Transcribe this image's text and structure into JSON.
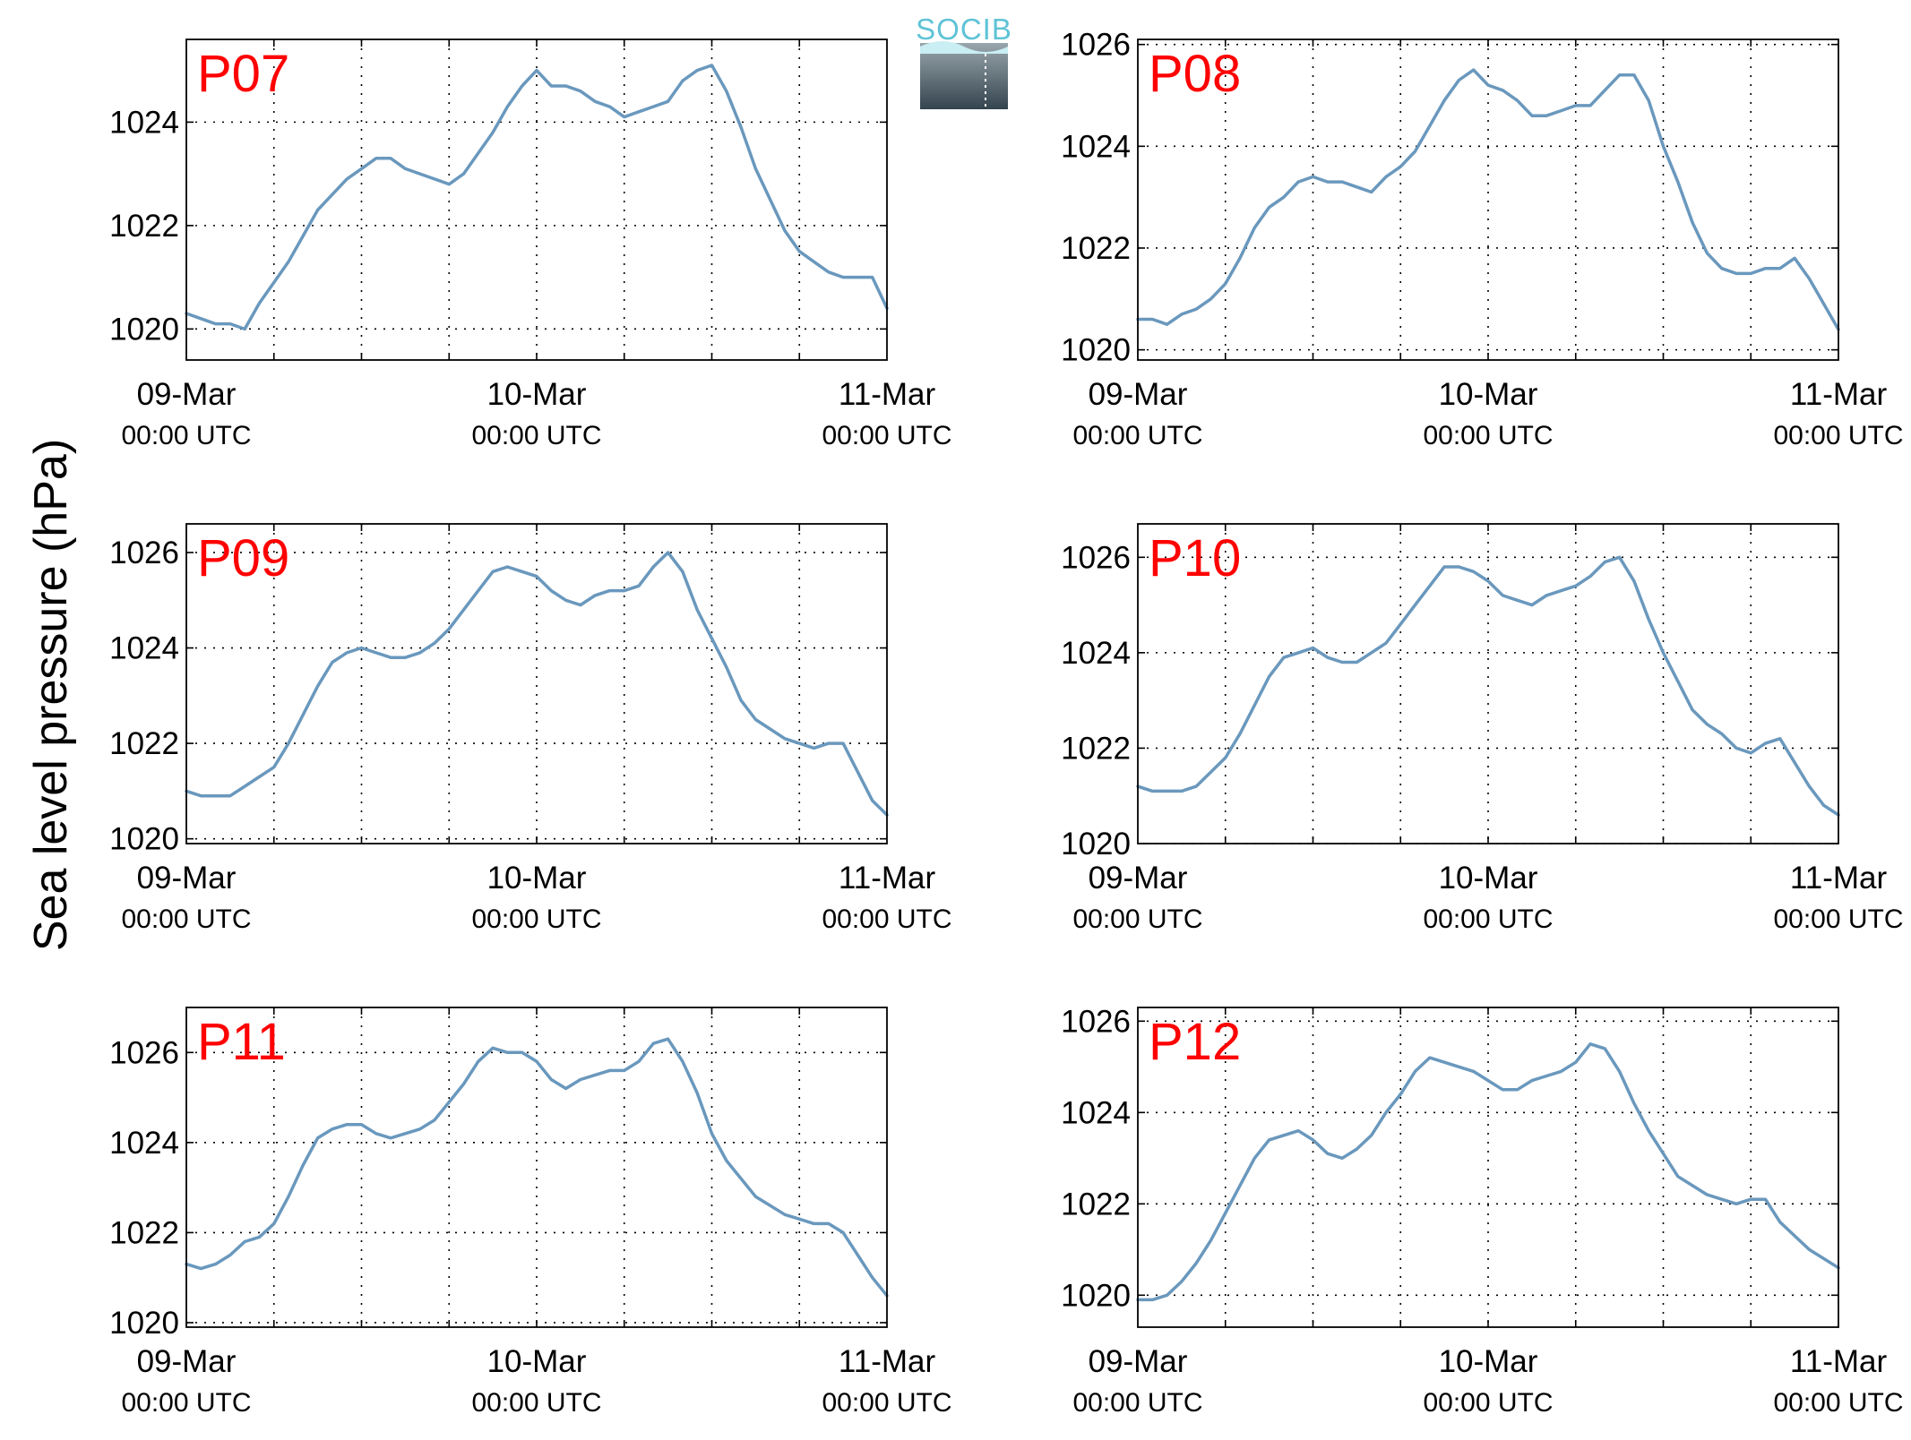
{
  "figure": {
    "ylabel": "Sea level pressure (hPa)",
    "logo_text": "SOCIB",
    "colors": {
      "line": "#6a98bd",
      "panel_label": "#ff0000",
      "axis": "#000000",
      "logo_text": "#5fc3d6",
      "logo_dark": "#3a4a55"
    }
  },
  "chart_data": [
    {
      "type": "line",
      "panel": "P07",
      "grid": true,
      "x_ticks": [
        {
          "top": "09-Mar",
          "bottom": "00:00 UTC"
        },
        {
          "top": "10-Mar",
          "bottom": "00:00 UTC"
        },
        {
          "top": "11-Mar",
          "bottom": "00:00 UTC"
        }
      ],
      "xlim_hours": [
        0,
        48
      ],
      "ylim": [
        1019.4,
        1025.6
      ],
      "y_ticks": [
        1020,
        1022,
        1024
      ],
      "series": [
        {
          "x_hours": [
            0,
            1,
            2,
            3,
            4,
            5,
            6,
            7,
            8,
            9,
            10,
            11,
            12,
            13,
            14,
            15,
            16,
            17,
            18,
            19,
            20,
            21,
            22,
            23,
            24,
            25,
            26,
            27,
            28,
            29,
            30,
            31,
            32,
            33,
            34,
            35,
            36,
            37,
            38,
            39,
            40,
            41,
            42,
            43,
            44,
            45,
            46,
            47,
            48
          ],
          "values": [
            1020.3,
            1020.2,
            1020.1,
            1020.1,
            1020.0,
            1020.5,
            1020.9,
            1021.3,
            1021.8,
            1022.3,
            1022.6,
            1022.9,
            1023.1,
            1023.3,
            1023.3,
            1023.1,
            1023.0,
            1022.9,
            1022.8,
            1023.0,
            1023.4,
            1023.8,
            1024.3,
            1024.7,
            1025.0,
            1024.7,
            1024.7,
            1024.6,
            1024.4,
            1024.3,
            1024.1,
            1024.2,
            1024.3,
            1024.4,
            1024.8,
            1025.0,
            1025.1,
            1024.6,
            1023.9,
            1023.1,
            1022.5,
            1021.9,
            1021.5,
            1021.3,
            1021.1,
            1021.0,
            1021.0,
            1021.0,
            1020.4
          ]
        }
      ]
    },
    {
      "type": "line",
      "panel": "P08",
      "grid": true,
      "x_ticks": [
        {
          "top": "09-Mar",
          "bottom": "00:00 UTC"
        },
        {
          "top": "10-Mar",
          "bottom": "00:00 UTC"
        },
        {
          "top": "11-Mar",
          "bottom": "00:00 UTC"
        }
      ],
      "xlim_hours": [
        0,
        48
      ],
      "ylim": [
        1019.8,
        1026.1
      ],
      "y_ticks": [
        1020,
        1022,
        1024,
        1026
      ],
      "series": [
        {
          "x_hours": [
            0,
            1,
            2,
            3,
            4,
            5,
            6,
            7,
            8,
            9,
            10,
            11,
            12,
            13,
            14,
            15,
            16,
            17,
            18,
            19,
            20,
            21,
            22,
            23,
            24,
            25,
            26,
            27,
            28,
            29,
            30,
            31,
            32,
            33,
            34,
            35,
            36,
            37,
            38,
            39,
            40,
            41,
            42,
            43,
            44,
            45,
            46,
            47,
            48
          ],
          "values": [
            1020.6,
            1020.6,
            1020.5,
            1020.7,
            1020.8,
            1021.0,
            1021.3,
            1021.8,
            1022.4,
            1022.8,
            1023.0,
            1023.3,
            1023.4,
            1023.3,
            1023.3,
            1023.2,
            1023.1,
            1023.4,
            1023.6,
            1023.9,
            1024.4,
            1024.9,
            1025.3,
            1025.5,
            1025.2,
            1025.1,
            1024.9,
            1024.6,
            1024.6,
            1024.7,
            1024.8,
            1024.8,
            1025.1,
            1025.4,
            1025.4,
            1024.9,
            1024.0,
            1023.3,
            1022.5,
            1021.9,
            1021.6,
            1021.5,
            1021.5,
            1021.6,
            1021.6,
            1021.8,
            1021.4,
            1020.9,
            1020.4
          ]
        }
      ]
    },
    {
      "type": "line",
      "panel": "P09",
      "grid": true,
      "x_ticks": [
        {
          "top": "09-Mar",
          "bottom": "00:00 UTC"
        },
        {
          "top": "10-Mar",
          "bottom": "00:00 UTC"
        },
        {
          "top": "11-Mar",
          "bottom": "00:00 UTC"
        }
      ],
      "xlim_hours": [
        0,
        48
      ],
      "ylim": [
        1019.9,
        1026.6
      ],
      "y_ticks": [
        1020,
        1022,
        1024,
        1026
      ],
      "series": [
        {
          "x_hours": [
            0,
            1,
            2,
            3,
            4,
            5,
            6,
            7,
            8,
            9,
            10,
            11,
            12,
            13,
            14,
            15,
            16,
            17,
            18,
            19,
            20,
            21,
            22,
            23,
            24,
            25,
            26,
            27,
            28,
            29,
            30,
            31,
            32,
            33,
            34,
            35,
            36,
            37,
            38,
            39,
            40,
            41,
            42,
            43,
            44,
            45,
            46,
            47,
            48
          ],
          "values": [
            1021.0,
            1020.9,
            1020.9,
            1020.9,
            1021.1,
            1021.3,
            1021.5,
            1022.0,
            1022.6,
            1023.2,
            1023.7,
            1023.9,
            1024.0,
            1023.9,
            1023.8,
            1023.8,
            1023.9,
            1024.1,
            1024.4,
            1024.8,
            1025.2,
            1025.6,
            1025.7,
            1025.6,
            1025.5,
            1025.2,
            1025.0,
            1024.9,
            1025.1,
            1025.2,
            1025.2,
            1025.3,
            1025.7,
            1026.0,
            1025.6,
            1024.8,
            1024.2,
            1023.6,
            1022.9,
            1022.5,
            1022.3,
            1022.1,
            1022.0,
            1021.9,
            1022.0,
            1022.0,
            1021.4,
            1020.8,
            1020.5
          ]
        }
      ]
    },
    {
      "type": "line",
      "panel": "P10",
      "grid": true,
      "x_ticks": [
        {
          "top": "09-Mar",
          "bottom": "00:00 UTC"
        },
        {
          "top": "10-Mar",
          "bottom": "00:00 UTC"
        },
        {
          "top": "11-Mar",
          "bottom": "00:00 UTC"
        }
      ],
      "xlim_hours": [
        0,
        48
      ],
      "ylim": [
        1020.0,
        1026.7
      ],
      "y_ticks": [
        1020,
        1022,
        1024,
        1026
      ],
      "series": [
        {
          "x_hours": [
            0,
            1,
            2,
            3,
            4,
            5,
            6,
            7,
            8,
            9,
            10,
            11,
            12,
            13,
            14,
            15,
            16,
            17,
            18,
            19,
            20,
            21,
            22,
            23,
            24,
            25,
            26,
            27,
            28,
            29,
            30,
            31,
            32,
            33,
            34,
            35,
            36,
            37,
            38,
            39,
            40,
            41,
            42,
            43,
            44,
            45,
            46,
            47,
            48
          ],
          "values": [
            1021.2,
            1021.1,
            1021.1,
            1021.1,
            1021.2,
            1021.5,
            1021.8,
            1022.3,
            1022.9,
            1023.5,
            1023.9,
            1024.0,
            1024.1,
            1023.9,
            1023.8,
            1023.8,
            1024.0,
            1024.2,
            1024.6,
            1025.0,
            1025.4,
            1025.8,
            1025.8,
            1025.7,
            1025.5,
            1025.2,
            1025.1,
            1025.0,
            1025.2,
            1025.3,
            1025.4,
            1025.6,
            1025.9,
            1026.0,
            1025.5,
            1024.7,
            1024.0,
            1023.4,
            1022.8,
            1022.5,
            1022.3,
            1022.0,
            1021.9,
            1022.1,
            1022.2,
            1021.7,
            1021.2,
            1020.8,
            1020.6
          ]
        }
      ]
    },
    {
      "type": "line",
      "panel": "P11",
      "grid": true,
      "x_ticks": [
        {
          "top": "09-Mar",
          "bottom": "00:00 UTC"
        },
        {
          "top": "10-Mar",
          "bottom": "00:00 UTC"
        },
        {
          "top": "11-Mar",
          "bottom": "00:00 UTC"
        }
      ],
      "xlim_hours": [
        0,
        48
      ],
      "ylim": [
        1019.9,
        1027.0
      ],
      "y_ticks": [
        1020,
        1022,
        1024,
        1026
      ],
      "series": [
        {
          "x_hours": [
            0,
            1,
            2,
            3,
            4,
            5,
            6,
            7,
            8,
            9,
            10,
            11,
            12,
            13,
            14,
            15,
            16,
            17,
            18,
            19,
            20,
            21,
            22,
            23,
            24,
            25,
            26,
            27,
            28,
            29,
            30,
            31,
            32,
            33,
            34,
            35,
            36,
            37,
            38,
            39,
            40,
            41,
            42,
            43,
            44,
            45,
            46,
            47,
            48
          ],
          "values": [
            1021.3,
            1021.2,
            1021.3,
            1021.5,
            1021.8,
            1021.9,
            1022.2,
            1022.8,
            1023.5,
            1024.1,
            1024.3,
            1024.4,
            1024.4,
            1024.2,
            1024.1,
            1024.2,
            1024.3,
            1024.5,
            1024.9,
            1025.3,
            1025.8,
            1026.1,
            1026.0,
            1026.0,
            1025.8,
            1025.4,
            1025.2,
            1025.4,
            1025.5,
            1025.6,
            1025.6,
            1025.8,
            1026.2,
            1026.3,
            1025.8,
            1025.1,
            1024.2,
            1023.6,
            1023.2,
            1022.8,
            1022.6,
            1022.4,
            1022.3,
            1022.2,
            1022.2,
            1022.0,
            1021.5,
            1021.0,
            1020.6
          ]
        }
      ]
    },
    {
      "type": "line",
      "panel": "P12",
      "grid": true,
      "x_ticks": [
        {
          "top": "09-Mar",
          "bottom": "00:00 UTC"
        },
        {
          "top": "10-Mar",
          "bottom": "00:00 UTC"
        },
        {
          "top": "11-Mar",
          "bottom": "00:00 UTC"
        }
      ],
      "xlim_hours": [
        0,
        48
      ],
      "ylim": [
        1019.3,
        1026.3
      ],
      "y_ticks": [
        1020,
        1022,
        1024,
        1026
      ],
      "series": [
        {
          "x_hours": [
            0,
            1,
            2,
            3,
            4,
            5,
            6,
            7,
            8,
            9,
            10,
            11,
            12,
            13,
            14,
            15,
            16,
            17,
            18,
            19,
            20,
            21,
            22,
            23,
            24,
            25,
            26,
            27,
            28,
            29,
            30,
            31,
            32,
            33,
            34,
            35,
            36,
            37,
            38,
            39,
            40,
            41,
            42,
            43,
            44,
            45,
            46,
            47,
            48
          ],
          "values": [
            1019.9,
            1019.9,
            1020.0,
            1020.3,
            1020.7,
            1021.2,
            1021.8,
            1022.4,
            1023.0,
            1023.4,
            1023.5,
            1023.6,
            1023.4,
            1023.1,
            1023.0,
            1023.2,
            1023.5,
            1024.0,
            1024.4,
            1024.9,
            1025.2,
            1025.1,
            1025.0,
            1024.9,
            1024.7,
            1024.5,
            1024.5,
            1024.7,
            1024.8,
            1024.9,
            1025.1,
            1025.5,
            1025.4,
            1024.9,
            1024.2,
            1023.6,
            1023.1,
            1022.6,
            1022.4,
            1022.2,
            1022.1,
            1022.0,
            1022.1,
            1022.1,
            1021.6,
            1021.3,
            1021.0,
            1020.8,
            1020.6
          ]
        }
      ]
    }
  ]
}
